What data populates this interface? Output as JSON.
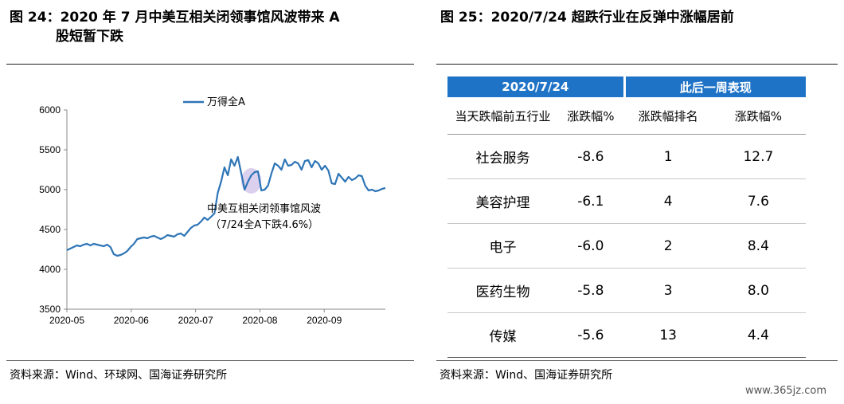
{
  "left_figure": {
    "title_line1": "图 24：2020 年 7 月中美互相关闭领事馆风波带来 A",
    "title_line2": "股短暂下跌",
    "source": "资料来源：Wind、环球网、国海证券研究所"
  },
  "right_figure": {
    "title": "图 25：2020/7/24 超跌行业在反弹中涨幅居前",
    "source": "资料来源：Wind、国海证券研究所"
  },
  "chart_data": {
    "type": "line",
    "legend": "万得全A",
    "annotation_line1": "中美互相关闭领事馆风波",
    "annotation_line2": "（7/24全A下跌4.6%）",
    "x_tick_labels": [
      "2020-05",
      "2020-06",
      "2020-07",
      "2020-08",
      "2020-09"
    ],
    "y_ticks": [
      3500,
      4000,
      4500,
      5000,
      5500,
      6000
    ],
    "ylim": [
      3500,
      6000
    ],
    "line_color": "#2e75b6",
    "highlight_color": "#c9b7e6",
    "series": [
      {
        "name": "万得全A",
        "values": [
          4240,
          4260,
          4280,
          4300,
          4290,
          4310,
          4320,
          4300,
          4320,
          4310,
          4300,
          4290,
          4310,
          4280,
          4190,
          4170,
          4180,
          4200,
          4230,
          4280,
          4320,
          4380,
          4390,
          4400,
          4390,
          4410,
          4420,
          4400,
          4380,
          4400,
          4430,
          4420,
          4410,
          4440,
          4450,
          4420,
          4470,
          4520,
          4550,
          4560,
          4600,
          4650,
          4620,
          4660,
          4700,
          4960,
          5100,
          5280,
          5180,
          5380,
          5300,
          5410,
          5210,
          5000,
          5100,
          5180,
          5220,
          5230,
          4990,
          5000,
          5050,
          5200,
          5330,
          5300,
          5250,
          5380,
          5300,
          5310,
          5350,
          5330,
          5250,
          5360,
          5370,
          5280,
          5360,
          5330,
          5250,
          5300,
          5240,
          5080,
          5070,
          5200,
          5150,
          5100,
          5160,
          5120,
          5140,
          5180,
          5170,
          5050,
          4990,
          5000,
          4980,
          4990,
          5010,
          5020
        ]
      }
    ],
    "highlight_index_range": [
      52,
      58
    ]
  },
  "table": {
    "header_left": "2020/7/24",
    "header_right": "此后一周表现",
    "columns": [
      "当天跌幅前五行业",
      "涨跌幅%",
      "涨跌幅排名",
      "涨跌幅%"
    ],
    "rows": [
      {
        "industry": "社会服务",
        "change": "-8.6",
        "rank": "1",
        "next_change": "12.7"
      },
      {
        "industry": "美容护理",
        "change": "-6.1",
        "rank": "4",
        "next_change": "7.6"
      },
      {
        "industry": "电子",
        "change": "-6.0",
        "rank": "2",
        "next_change": "8.4"
      },
      {
        "industry": "医药生物",
        "change": "-5.8",
        "rank": "3",
        "next_change": "8.0"
      },
      {
        "industry": "传媒",
        "change": "-5.6",
        "rank": "13",
        "next_change": "4.4"
      }
    ]
  },
  "watermark": "www.365jz.com"
}
